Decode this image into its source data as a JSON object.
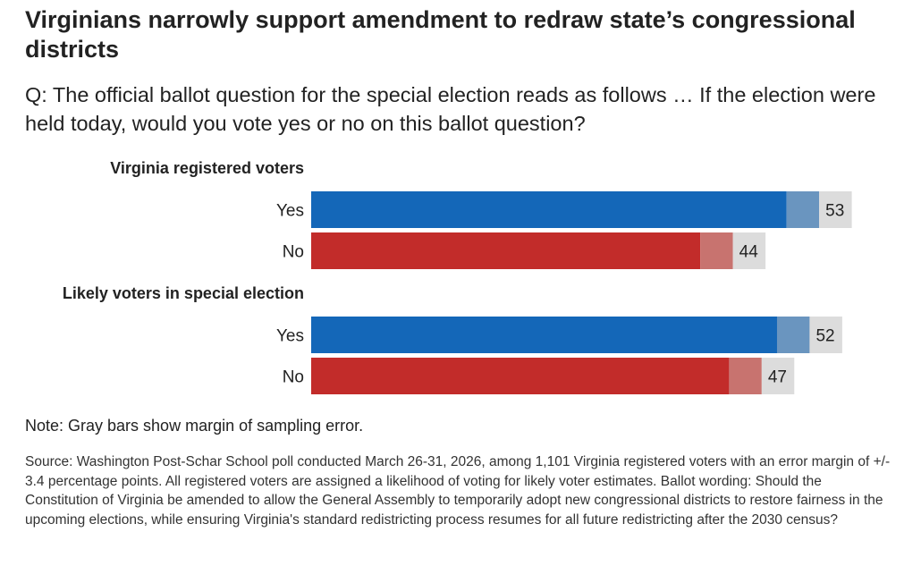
{
  "title": "Virginians narrowly support amendment to redraw state’s congressional districts",
  "subtitle": "Q: The official ballot question for the special election reads as follows … If the election were held today, would you vote yes or no on this ballot question?",
  "note": "Note: Gray bars show margin of sampling error.",
  "source": "Source: Washington Post-Schar School poll conducted March 26-31, 2026, among 1,101 Virginia registered voters with an error margin of +/- 3.4 percentage points. All registered voters are assigned a likelihood of voting for likely voter estimates. Ballot wording: Should the Constitution of Virginia be amended to allow the General Assembly to temporarily adopt new congressional districts to restore fairness in the upcoming elections, while ensuring Virginia's standard redistricting process resumes for all future redistricting after the 2030 census?",
  "colors": {
    "yes": "#1467b8",
    "yes_margin": "#6a95bf",
    "no": "#c22c2a",
    "no_margin": "#c8736f",
    "error_band": "#dcdcdc"
  },
  "chart_data": {
    "type": "bar",
    "orientation": "horizontal",
    "margin_of_error": 3.4,
    "xlim": [
      0,
      100
    ],
    "groups": [
      {
        "label": "Virginia registered voters",
        "bars": [
          {
            "category": "Yes",
            "value": 53
          },
          {
            "category": "No",
            "value": 44
          }
        ]
      },
      {
        "label": "Likely voters in special election",
        "bars": [
          {
            "category": "Yes",
            "value": 52
          },
          {
            "category": "No",
            "value": 47
          }
        ]
      }
    ]
  }
}
